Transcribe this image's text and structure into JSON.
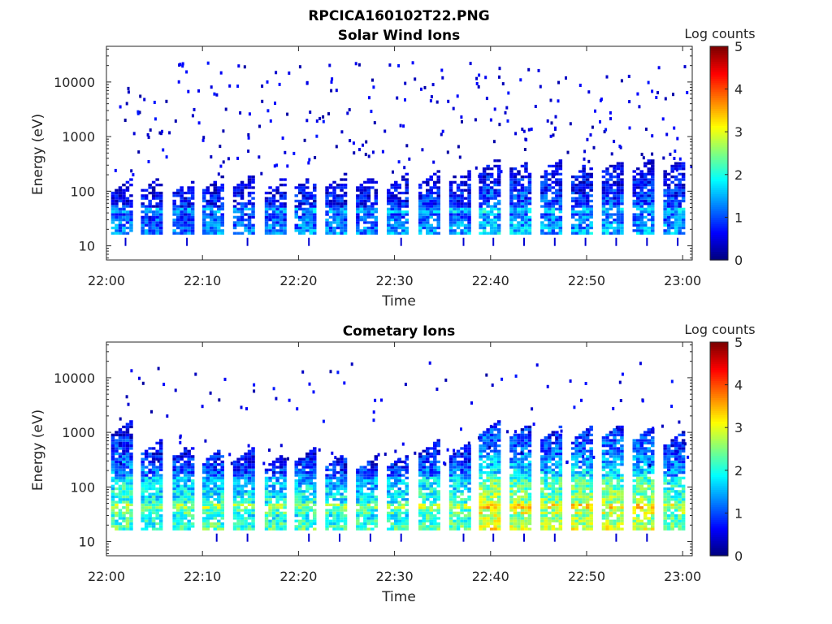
{
  "figure_title": "RPCICA160102T22.PNG",
  "chart_data": [
    {
      "type": "heatmap",
      "title": "Solar Wind Ions",
      "xlabel": "Time",
      "ylabel": "Energy (eV)",
      "x_ticks": [
        "22:00",
        "22:10",
        "22:20",
        "22:30",
        "22:40",
        "22:50",
        "23:00"
      ],
      "x_range": [
        "22:00",
        "23:01"
      ],
      "y_scale": "log",
      "y_ticks": [
        10,
        100,
        1000,
        10000
      ],
      "y_range": [
        5.5,
        45000
      ],
      "colorbar": {
        "label": "Log counts",
        "range": [
          0,
          5
        ],
        "ticks": [
          0,
          1,
          2,
          3,
          4,
          5
        ],
        "colormap": "jet"
      },
      "sweep_period_min": 3.2,
      "bursts": [
        {
          "t": "22:01.5",
          "peak_log": 1.9,
          "max_energy_ev": 160
        },
        {
          "t": "22:04.6",
          "peak_log": 1.8,
          "max_energy_ev": 170
        },
        {
          "t": "22:07.9",
          "peak_log": 1.8,
          "max_energy_ev": 160
        },
        {
          "t": "22:11.0",
          "peak_log": 1.9,
          "max_energy_ev": 180
        },
        {
          "t": "22:14.2",
          "peak_log": 1.8,
          "max_energy_ev": 190
        },
        {
          "t": "22:17.5",
          "peak_log": 1.8,
          "max_energy_ev": 170
        },
        {
          "t": "22:20.6",
          "peak_log": 1.9,
          "max_energy_ev": 190
        },
        {
          "t": "22:23.8",
          "peak_log": 1.9,
          "max_energy_ev": 200
        },
        {
          "t": "22:27.0",
          "peak_log": 1.8,
          "max_energy_ev": 190
        },
        {
          "t": "22:30.2",
          "peak_log": 1.9,
          "max_energy_ev": 200
        },
        {
          "t": "22:33.5",
          "peak_log": 2.0,
          "max_energy_ev": 230
        },
        {
          "t": "22:36.7",
          "peak_log": 2.0,
          "max_energy_ev": 260
        },
        {
          "t": "22:39.8",
          "peak_log": 2.2,
          "max_energy_ev": 400
        },
        {
          "t": "22:43.0",
          "peak_log": 2.1,
          "max_energy_ev": 420
        },
        {
          "t": "22:46.2",
          "peak_log": 2.0,
          "max_energy_ev": 400
        },
        {
          "t": "22:49.4",
          "peak_log": 2.0,
          "max_energy_ev": 350
        },
        {
          "t": "22:52.6",
          "peak_log": 2.0,
          "max_energy_ev": 380
        },
        {
          "t": "22:55.8",
          "peak_log": 2.0,
          "max_energy_ev": 400
        },
        {
          "t": "22:59.0",
          "peak_log": 2.0,
          "max_energy_ev": 380
        }
      ]
    },
    {
      "type": "heatmap",
      "title": "Cometary Ions",
      "xlabel": "Time",
      "ylabel": "Energy (eV)",
      "x_ticks": [
        "22:00",
        "22:10",
        "22:20",
        "22:30",
        "22:40",
        "22:50",
        "23:00"
      ],
      "x_range": [
        "22:00",
        "23:01"
      ],
      "y_scale": "log",
      "y_ticks": [
        10,
        100,
        1000,
        10000
      ],
      "y_range": [
        5.5,
        45000
      ],
      "colorbar": {
        "label": "Log counts",
        "range": [
          0,
          5
        ],
        "ticks": [
          0,
          1,
          2,
          3,
          4,
          5
        ],
        "colormap": "jet"
      },
      "sweep_period_min": 3.2,
      "bursts": [
        {
          "t": "22:01.5",
          "peak_log": 2.8,
          "max_energy_ev": 1500
        },
        {
          "t": "22:04.6",
          "peak_log": 2.7,
          "max_energy_ev": 700
        },
        {
          "t": "22:07.9",
          "peak_log": 2.7,
          "max_energy_ev": 600
        },
        {
          "t": "22:11.0",
          "peak_log": 2.8,
          "max_energy_ev": 500
        },
        {
          "t": "22:14.2",
          "peak_log": 2.7,
          "max_energy_ev": 500
        },
        {
          "t": "22:17.5",
          "peak_log": 2.8,
          "max_energy_ev": 400
        },
        {
          "t": "22:20.6",
          "peak_log": 2.8,
          "max_energy_ev": 500
        },
        {
          "t": "22:23.8",
          "peak_log": 2.7,
          "max_energy_ev": 400
        },
        {
          "t": "22:27.0",
          "peak_log": 2.7,
          "max_energy_ev": 350
        },
        {
          "t": "22:30.2",
          "peak_log": 2.8,
          "max_energy_ev": 400
        },
        {
          "t": "22:33.5",
          "peak_log": 2.9,
          "max_energy_ev": 700
        },
        {
          "t": "22:36.7",
          "peak_log": 2.9,
          "max_energy_ev": 600
        },
        {
          "t": "22:39.8",
          "peak_log": 3.6,
          "max_energy_ev": 1500
        },
        {
          "t": "22:43.0",
          "peak_log": 3.4,
          "max_energy_ev": 1300
        },
        {
          "t": "22:46.2",
          "peak_log": 3.3,
          "max_energy_ev": 1200
        },
        {
          "t": "22:49.4",
          "peak_log": 3.4,
          "max_energy_ev": 1200
        },
        {
          "t": "22:52.6",
          "peak_log": 3.4,
          "max_energy_ev": 1300
        },
        {
          "t": "22:55.8",
          "peak_log": 3.4,
          "max_energy_ev": 1200
        },
        {
          "t": "22:59.0",
          "peak_log": 3.0,
          "max_energy_ev": 1000
        }
      ]
    }
  ]
}
